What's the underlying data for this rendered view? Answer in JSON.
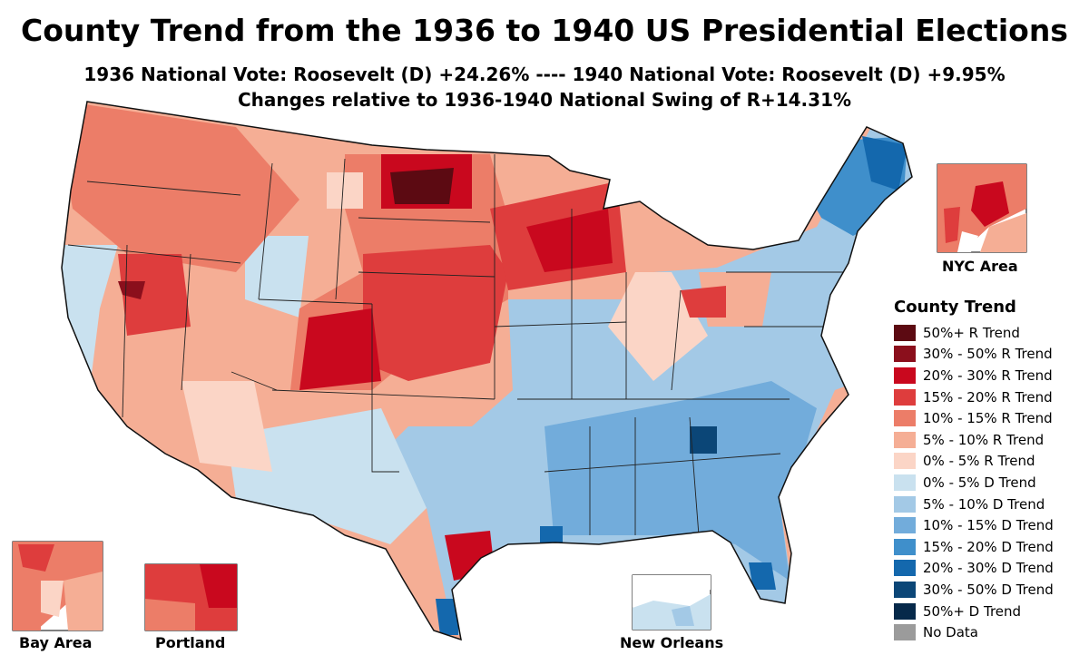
{
  "title": "County Trend from the 1936 to 1940 US Presidential Elections",
  "subtitle_1": "1936 National Vote: Roosevelt (D) +24.26% ---- 1940 National Vote: Roosevelt (D) +9.95%",
  "subtitle_2": "Changes relative to 1936-1940 National Swing of R+14.31%",
  "legend": {
    "title": "County Trend",
    "items": [
      {
        "label": "50%+ R Trend",
        "color": "#5c0a12"
      },
      {
        "label": "30% - 50% R Trend",
        "color": "#8b0f1c"
      },
      {
        "label": "20% - 30% R Trend",
        "color": "#c9081e"
      },
      {
        "label": "15% - 20% R Trend",
        "color": "#de3d3d"
      },
      {
        "label": "10% - 15% R Trend",
        "color": "#ec7d68"
      },
      {
        "label": "5% - 10% R Trend",
        "color": "#f5ae95"
      },
      {
        "label": "0% - 5% R Trend",
        "color": "#fbd5c6"
      },
      {
        "label": "0% - 5% D Trend",
        "color": "#c9e1ef"
      },
      {
        "label": "5% - 10% D Trend",
        "color": "#a3c9e6"
      },
      {
        "label": "10% - 15% D Trend",
        "color": "#72acdb"
      },
      {
        "label": "15% - 20% D Trend",
        "color": "#3f8fcb"
      },
      {
        "label": "20% - 30% D Trend",
        "color": "#1468ad"
      },
      {
        "label": "30% - 50% D Trend",
        "color": "#0b4677"
      },
      {
        "label": "50%+ D Trend",
        "color": "#06294a"
      },
      {
        "label": "No Data",
        "color": "#9b9b9b"
      }
    ]
  },
  "insets": {
    "nyc": "NYC Area",
    "bay_area": "Bay Area",
    "portland": "Portland",
    "new_orleans": "New Orleans"
  }
}
